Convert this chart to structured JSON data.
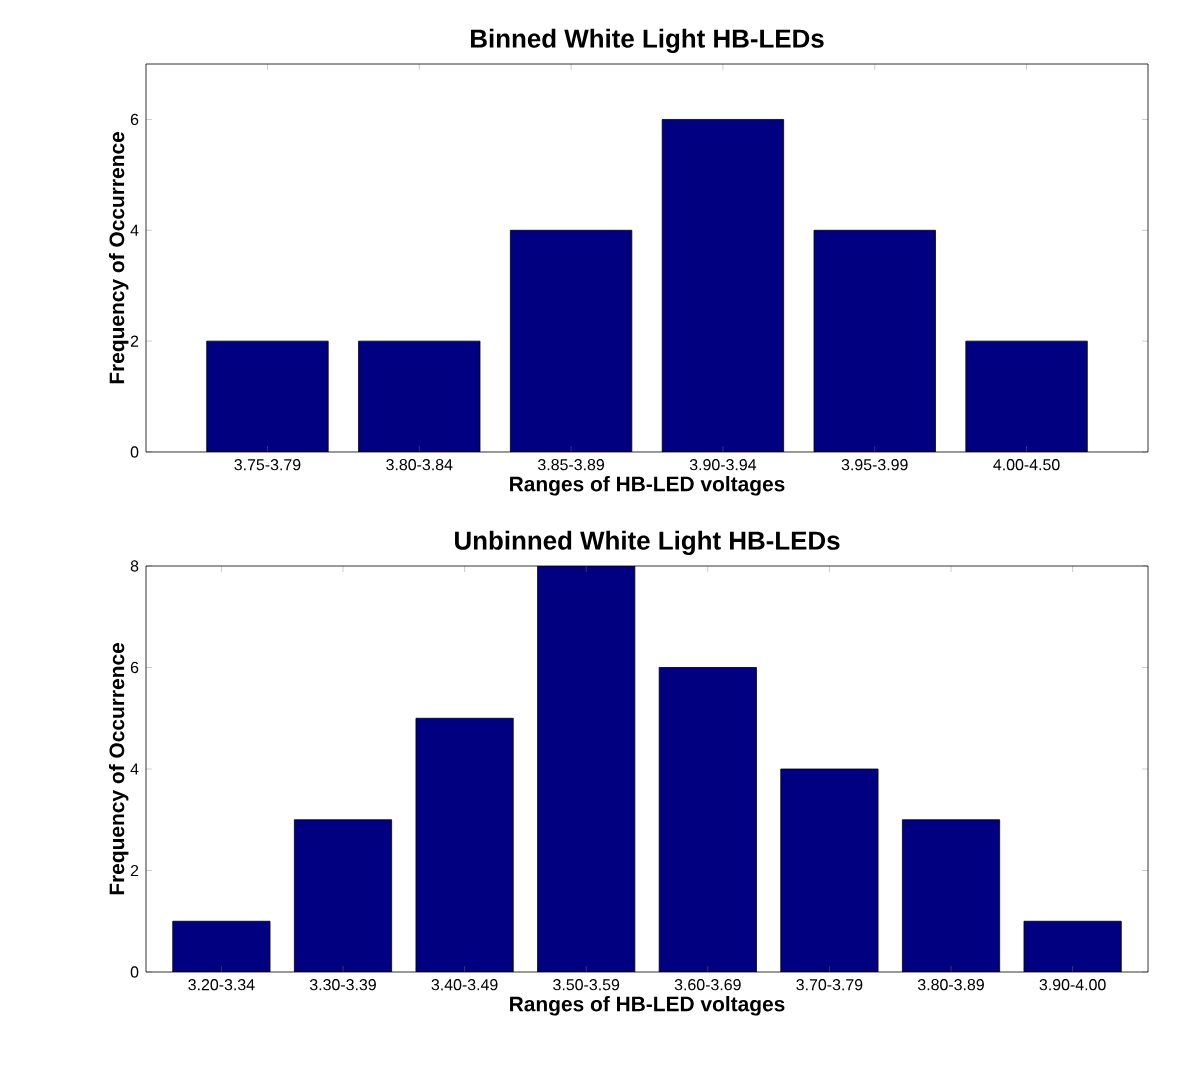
{
  "chart_data": [
    {
      "type": "bar",
      "title": "Binned White Light HB-LEDs",
      "xlabel": "Ranges of HB-LED voltages",
      "ylabel": "Frequency of Occurrence",
      "categories": [
        "3.75-3.79",
        "3.80-3.84",
        "3.85-3.89",
        "3.90-3.94",
        "3.95-3.99",
        "4.00-4.50"
      ],
      "values": [
        2,
        2,
        4,
        6,
        4,
        2
      ],
      "color": "#000080",
      "ylim": [
        0,
        7
      ],
      "yticks": [
        0,
        2,
        4,
        6
      ]
    },
    {
      "type": "bar",
      "title": "Unbinned White Light HB-LEDs",
      "xlabel": "Ranges of HB-LED voltages",
      "ylabel": "Frequency of Occurrence",
      "categories": [
        "3.20-3.34",
        "3.30-3.39",
        "3.40-3.49",
        "3.50-3.59",
        "3.60-3.69",
        "3.70-3.79",
        "3.80-3.89",
        "3.90-4.00"
      ],
      "values": [
        1,
        3,
        5,
        8,
        6,
        4,
        3,
        1
      ],
      "color": "#000080",
      "ylim": [
        0,
        8
      ],
      "yticks": [
        0,
        2,
        4,
        6,
        8
      ]
    }
  ]
}
